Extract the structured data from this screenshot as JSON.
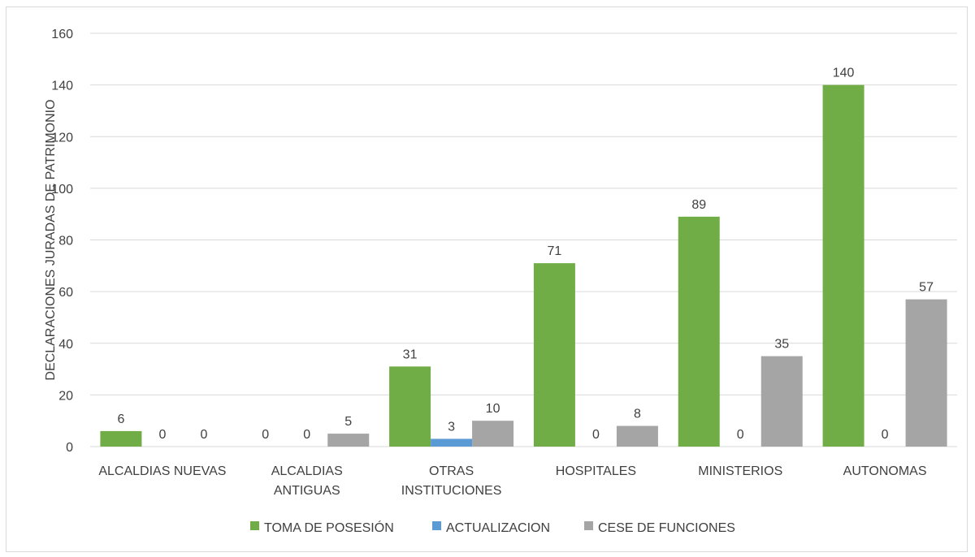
{
  "chart_data": {
    "type": "bar",
    "title": "",
    "xlabel": "",
    "ylabel": "DECLARACIONES JURADAS DE PATRIMONIO",
    "ylim": [
      0,
      160
    ],
    "yticks": [
      0,
      20,
      40,
      60,
      80,
      100,
      120,
      140,
      160
    ],
    "grid": true,
    "legend_position": "bottom",
    "categories": [
      [
        "ALCALDIAS NUEVAS"
      ],
      [
        "ALCALDIAS",
        "ANTIGUAS"
      ],
      [
        "OTRAS",
        "INSTITUCIONES"
      ],
      [
        "HOSPITALES"
      ],
      [
        "MINISTERIOS"
      ],
      [
        "AUTONOMAS"
      ]
    ],
    "series": [
      {
        "name": "TOMA DE POSESIÓN",
        "color": "#70ad47",
        "values": [
          6,
          0,
          31,
          71,
          89,
          140
        ],
        "labels": [
          "6",
          "0",
          "31",
          "71",
          "89",
          "140"
        ]
      },
      {
        "name": "ACTUALIZACION",
        "color": "#5b9bd5",
        "values": [
          0,
          0,
          3,
          0,
          0,
          0
        ],
        "labels": [
          "0",
          "0",
          "3",
          "0",
          "0",
          "0"
        ]
      },
      {
        "name": "CESE DE FUNCIONES",
        "color": "#a5a5a5",
        "values": [
          0,
          5,
          10,
          8,
          35,
          57
        ],
        "labels": [
          "0",
          "5",
          "10",
          "8",
          "35",
          "57"
        ]
      }
    ]
  }
}
